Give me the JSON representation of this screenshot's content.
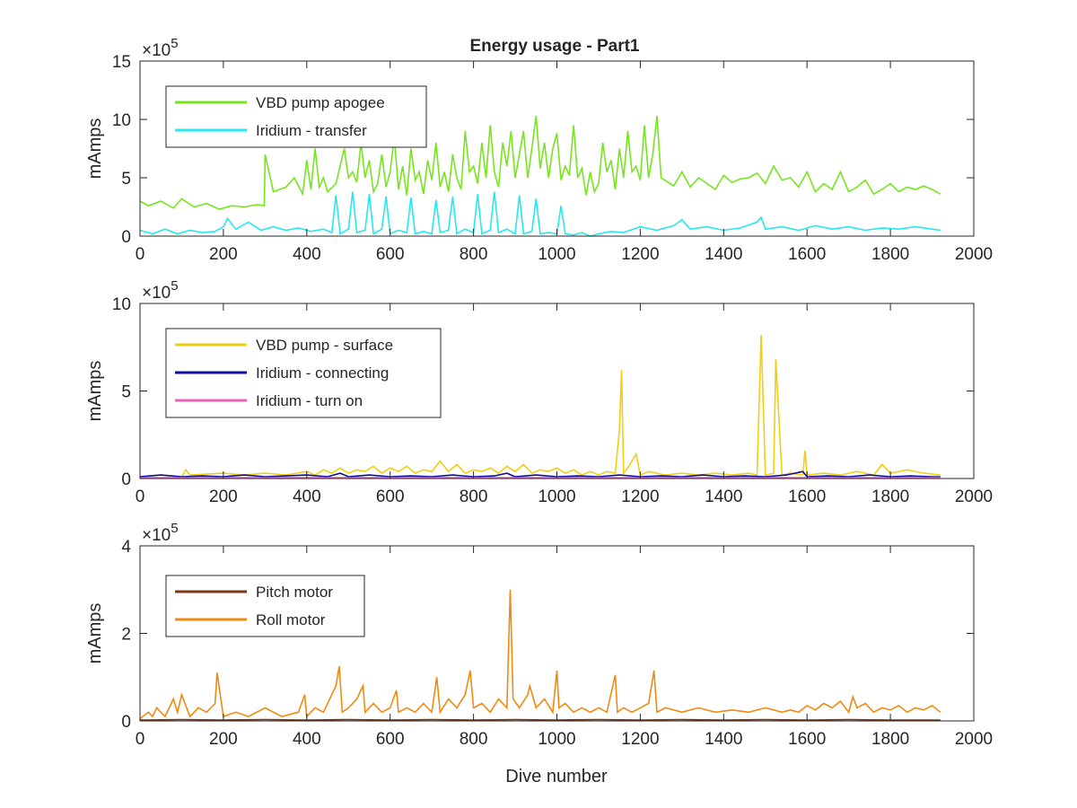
{
  "figure": {
    "title": "Energy usage - Part1",
    "xlabel": "Dive number"
  },
  "chart_data": [
    {
      "type": "line",
      "title": "Energy usage - Part1",
      "xlabel": "",
      "ylabel": "mAmps",
      "y_multiplier": "×10^5",
      "multiplier_base": "×10",
      "multiplier_exp": "5",
      "xlim": [
        0,
        2000
      ],
      "ylim": [
        0,
        15
      ],
      "xticks": [
        "0",
        "200",
        "400",
        "600",
        "800",
        "1000",
        "1200",
        "1400",
        "1600",
        "1800",
        "2000"
      ],
      "yticks": [
        "0",
        "5",
        "10",
        "15"
      ],
      "legend_position": "top-left",
      "series": [
        {
          "name": "VBD pump apogee",
          "color": "#77e51e",
          "x": [
            0,
            20,
            50,
            80,
            100,
            130,
            160,
            190,
            220,
            250,
            280,
            298,
            300,
            320,
            350,
            370,
            390,
            400,
            410,
            420,
            430,
            440,
            450,
            470,
            490,
            500,
            510,
            520,
            530,
            540,
            550,
            560,
            570,
            580,
            590,
            600,
            610,
            620,
            630,
            640,
            650,
            660,
            670,
            680,
            690,
            700,
            710,
            720,
            730,
            740,
            750,
            760,
            770,
            780,
            790,
            800,
            810,
            820,
            830,
            840,
            850,
            860,
            870,
            880,
            890,
            900,
            910,
            920,
            930,
            940,
            950,
            960,
            970,
            980,
            990,
            1000,
            1010,
            1020,
            1030,
            1040,
            1050,
            1060,
            1070,
            1080,
            1090,
            1100,
            1110,
            1120,
            1130,
            1140,
            1150,
            1160,
            1170,
            1180,
            1190,
            1200,
            1210,
            1220,
            1230,
            1240,
            1250,
            1280,
            1300,
            1320,
            1340,
            1360,
            1380,
            1400,
            1420,
            1440,
            1460,
            1480,
            1500,
            1520,
            1540,
            1560,
            1580,
            1600,
            1620,
            1640,
            1660,
            1680,
            1700,
            1720,
            1740,
            1760,
            1780,
            1800,
            1820,
            1840,
            1860,
            1880,
            1900,
            1920
          ],
          "values": [
            3.0,
            2.6,
            3.0,
            2.4,
            3.2,
            2.5,
            2.8,
            2.3,
            2.6,
            2.5,
            2.7,
            2.6,
            7.0,
            3.8,
            4.2,
            5.0,
            3.6,
            6.5,
            4.0,
            7.5,
            4.2,
            5.0,
            3.8,
            4.5,
            7.5,
            5.0,
            5.5,
            4.6,
            8.0,
            5.0,
            6.5,
            3.8,
            4.5,
            7.0,
            4.2,
            5.5,
            8.5,
            4.0,
            6.0,
            3.5,
            7.5,
            4.8,
            5.5,
            3.6,
            6.5,
            4.8,
            8.0,
            4.2,
            5.5,
            3.8,
            7.0,
            5.0,
            4.0,
            9.0,
            5.5,
            6.0,
            4.5,
            8.0,
            5.0,
            9.5,
            5.5,
            4.2,
            8.0,
            6.0,
            9.0,
            5.0,
            7.0,
            9.0,
            5.0,
            7.5,
            10.3,
            5.8,
            8.0,
            5.0,
            7.5,
            8.8,
            4.8,
            6.0,
            5.2,
            9.5,
            5.0,
            5.8,
            3.5,
            5.5,
            3.8,
            4.5,
            8.0,
            5.5,
            6.5,
            4.0,
            7.5,
            5.0,
            9.0,
            5.5,
            6.0,
            4.8,
            9.5,
            5.0,
            7.0,
            10.3,
            5.0,
            4.3,
            5.5,
            4.2,
            5.0,
            4.5,
            4.0,
            5.2,
            4.6,
            4.9,
            5.0,
            5.4,
            4.5,
            6.0,
            4.8,
            5.0,
            4.2,
            5.5,
            3.8,
            4.5,
            4.0,
            5.5,
            3.8,
            4.2,
            4.8,
            3.6,
            4.0,
            4.5,
            3.8,
            4.2,
            4.0,
            4.3,
            4.0,
            3.6
          ]
        },
        {
          "name": "Iridium - transfer",
          "color": "#25e8f0",
          "x": [
            0,
            30,
            60,
            90,
            120,
            150,
            180,
            200,
            210,
            230,
            260,
            290,
            320,
            350,
            380,
            410,
            440,
            460,
            470,
            480,
            500,
            510,
            520,
            540,
            550,
            560,
            580,
            590,
            600,
            620,
            640,
            650,
            660,
            680,
            700,
            710,
            720,
            740,
            750,
            760,
            780,
            800,
            810,
            820,
            840,
            850,
            860,
            880,
            900,
            910,
            920,
            940,
            950,
            960,
            980,
            1000,
            1010,
            1020,
            1040,
            1060,
            1080,
            1100,
            1130,
            1160,
            1200,
            1240,
            1280,
            1300,
            1320,
            1360,
            1400,
            1440,
            1480,
            1490,
            1500,
            1540,
            1580,
            1620,
            1660,
            1700,
            1740,
            1780,
            1820,
            1860,
            1900,
            1920
          ],
          "values": [
            0.5,
            0.2,
            0.6,
            0.2,
            0.5,
            0.3,
            0.4,
            0.8,
            1.5,
            0.6,
            1.2,
            0.5,
            0.8,
            0.5,
            0.7,
            0.4,
            0.6,
            0.3,
            3.5,
            0.2,
            0.6,
            3.8,
            0.3,
            0.5,
            3.6,
            0.2,
            0.6,
            3.4,
            0.2,
            0.5,
            0.3,
            3.3,
            0.2,
            0.4,
            0.2,
            3.1,
            0.3,
            0.5,
            3.4,
            0.2,
            0.6,
            0.3,
            3.6,
            0.2,
            0.5,
            3.8,
            0.3,
            0.6,
            0.2,
            3.5,
            0.2,
            0.4,
            3.2,
            0.2,
            0.3,
            0.2,
            2.6,
            0.2,
            0.1,
            0.3,
            0.0,
            0.2,
            0.4,
            0.3,
            0.8,
            0.5,
            0.9,
            1.4,
            0.6,
            0.8,
            0.5,
            0.7,
            1.2,
            1.6,
            0.6,
            0.8,
            0.5,
            0.9,
            0.6,
            0.8,
            0.5,
            0.7,
            0.6,
            0.8,
            0.6,
            0.5
          ]
        }
      ]
    },
    {
      "type": "line",
      "xlabel": "",
      "ylabel": "mAmps",
      "y_multiplier": "×10^5",
      "multiplier_base": "×10",
      "multiplier_exp": "5",
      "xlim": [
        0,
        2000
      ],
      "ylim": [
        0,
        10
      ],
      "xticks": [
        "0",
        "200",
        "400",
        "600",
        "800",
        "1000",
        "1200",
        "1400",
        "1600",
        "1800",
        "2000"
      ],
      "yticks": [
        "0",
        "5",
        "10"
      ],
      "legend_position": "top-left",
      "series": [
        {
          "name": "VBD pump - surface",
          "color": "#f2cc15",
          "x": [
            0,
            50,
            100,
            110,
            120,
            200,
            250,
            300,
            350,
            400,
            420,
            440,
            460,
            480,
            500,
            520,
            540,
            560,
            580,
            600,
            620,
            640,
            660,
            680,
            700,
            720,
            740,
            760,
            780,
            800,
            820,
            840,
            860,
            880,
            900,
            920,
            940,
            960,
            980,
            1000,
            1020,
            1040,
            1060,
            1080,
            1100,
            1120,
            1140,
            1150,
            1155,
            1160,
            1170,
            1190,
            1200,
            1220,
            1260,
            1300,
            1340,
            1380,
            1420,
            1460,
            1480,
            1490,
            1500,
            1520,
            1525,
            1540,
            1560,
            1590,
            1595,
            1600,
            1640,
            1680,
            1720,
            1760,
            1780,
            1800,
            1840,
            1880,
            1920
          ],
          "values": [
            0.1,
            0.2,
            0.1,
            0.5,
            0.2,
            0.3,
            0.2,
            0.3,
            0.2,
            0.4,
            0.2,
            0.5,
            0.3,
            0.6,
            0.3,
            0.5,
            0.4,
            0.7,
            0.3,
            0.6,
            0.4,
            0.7,
            0.3,
            0.5,
            0.4,
            1.0,
            0.4,
            0.8,
            0.3,
            0.5,
            0.4,
            0.6,
            0.3,
            0.7,
            0.4,
            0.8,
            0.3,
            0.5,
            0.4,
            0.6,
            0.3,
            0.5,
            0.2,
            0.4,
            0.2,
            0.4,
            0.3,
            2.8,
            6.2,
            0.3,
            0.6,
            1.4,
            0.2,
            0.4,
            0.2,
            0.3,
            0.2,
            0.3,
            0.2,
            0.3,
            0.2,
            8.2,
            0.2,
            0.3,
            6.8,
            0.2,
            0.3,
            0.2,
            1.6,
            0.2,
            0.3,
            0.2,
            0.4,
            0.2,
            0.8,
            0.3,
            0.5,
            0.3,
            0.2
          ]
        },
        {
          "name": "Iridium - connecting",
          "color": "#0a0aa5",
          "x": [
            0,
            50,
            100,
            150,
            200,
            250,
            300,
            350,
            400,
            450,
            480,
            500,
            550,
            600,
            650,
            700,
            750,
            800,
            850,
            880,
            900,
            950,
            1000,
            1050,
            1100,
            1150,
            1200,
            1250,
            1300,
            1350,
            1400,
            1450,
            1500,
            1550,
            1590,
            1600,
            1650,
            1700,
            1750,
            1800,
            1850,
            1900,
            1920
          ],
          "values": [
            0.1,
            0.2,
            0.1,
            0.15,
            0.1,
            0.2,
            0.1,
            0.15,
            0.2,
            0.1,
            0.3,
            0.1,
            0.2,
            0.1,
            0.15,
            0.1,
            0.2,
            0.1,
            0.15,
            0.3,
            0.1,
            0.2,
            0.1,
            0.15,
            0.1,
            0.2,
            0.1,
            0.15,
            0.1,
            0.2,
            0.1,
            0.15,
            0.1,
            0.2,
            0.4,
            0.1,
            0.15,
            0.1,
            0.2,
            0.1,
            0.15,
            0.1,
            0.1
          ]
        },
        {
          "name": "Iridium - turn on",
          "color": "#f25fb4",
          "x": [
            0,
            200,
            400,
            600,
            800,
            1000,
            1200,
            1400,
            1600,
            1800,
            1920
          ],
          "values": [
            0.05,
            0.05,
            0.05,
            0.05,
            0.05,
            0.05,
            0.05,
            0.05,
            0.05,
            0.05,
            0.05
          ]
        }
      ]
    },
    {
      "type": "line",
      "xlabel": "Dive number",
      "ylabel": "mAmps",
      "y_multiplier": "×10^5",
      "multiplier_base": "×10",
      "multiplier_exp": "5",
      "xlim": [
        0,
        2000
      ],
      "ylim": [
        0,
        4
      ],
      "xticks": [
        "0",
        "200",
        "400",
        "600",
        "800",
        "1000",
        "1200",
        "1400",
        "1600",
        "1800",
        "2000"
      ],
      "yticks": [
        "0",
        "2",
        "4"
      ],
      "legend_position": "top-left",
      "series": [
        {
          "name": "Pitch motor",
          "color": "#7a3a10",
          "x": [
            0,
            100,
            200,
            300,
            400,
            500,
            600,
            700,
            800,
            900,
            1000,
            1100,
            1200,
            1300,
            1400,
            1500,
            1600,
            1700,
            1800,
            1920
          ],
          "values": [
            0.02,
            0.03,
            0.02,
            0.03,
            0.02,
            0.03,
            0.02,
            0.03,
            0.02,
            0.03,
            0.02,
            0.03,
            0.02,
            0.03,
            0.02,
            0.03,
            0.02,
            0.03,
            0.02,
            0.02
          ]
        },
        {
          "name": "Roll motor",
          "color": "#f08a10",
          "x": [
            0,
            20,
            30,
            40,
            60,
            80,
            90,
            100,
            120,
            140,
            160,
            180,
            185,
            200,
            230,
            260,
            300,
            340,
            380,
            395,
            400,
            420,
            440,
            470,
            478,
            485,
            500,
            520,
            535,
            540,
            560,
            580,
            600,
            615,
            620,
            640,
            660,
            680,
            700,
            712,
            720,
            740,
            760,
            780,
            792,
            800,
            820,
            840,
            860,
            880,
            888,
            895,
            910,
            930,
            935,
            950,
            970,
            990,
            1000,
            1005,
            1020,
            1040,
            1060,
            1080,
            1100,
            1120,
            1140,
            1145,
            1160,
            1180,
            1200,
            1220,
            1233,
            1240,
            1260,
            1300,
            1340,
            1380,
            1420,
            1460,
            1500,
            1540,
            1560,
            1580,
            1600,
            1620,
            1640,
            1660,
            1680,
            1700,
            1710,
            1720,
            1740,
            1760,
            1780,
            1800,
            1820,
            1840,
            1860,
            1880,
            1900,
            1920
          ],
          "values": [
            0.05,
            0.2,
            0.1,
            0.3,
            0.1,
            0.5,
            0.2,
            0.6,
            0.1,
            0.3,
            0.2,
            0.4,
            1.1,
            0.1,
            0.2,
            0.1,
            0.3,
            0.1,
            0.2,
            0.6,
            0.1,
            0.3,
            0.2,
            0.8,
            1.25,
            0.2,
            0.3,
            0.5,
            0.8,
            0.2,
            0.4,
            0.2,
            0.3,
            0.7,
            0.2,
            0.3,
            0.2,
            0.4,
            0.2,
            1.0,
            0.2,
            0.5,
            0.3,
            0.6,
            1.15,
            0.3,
            0.4,
            0.2,
            0.5,
            0.3,
            3.0,
            0.5,
            0.3,
            0.6,
            0.8,
            0.3,
            0.5,
            0.2,
            1.15,
            0.3,
            0.4,
            0.2,
            0.3,
            0.2,
            0.3,
            0.2,
            1.05,
            0.2,
            0.3,
            0.2,
            0.3,
            0.4,
            1.15,
            0.2,
            0.3,
            0.2,
            0.3,
            0.2,
            0.25,
            0.2,
            0.3,
            0.2,
            0.25,
            0.2,
            0.35,
            0.25,
            0.4,
            0.3,
            0.45,
            0.2,
            0.55,
            0.3,
            0.4,
            0.2,
            0.3,
            0.25,
            0.35,
            0.2,
            0.3,
            0.25,
            0.35,
            0.2
          ]
        }
      ]
    }
  ]
}
